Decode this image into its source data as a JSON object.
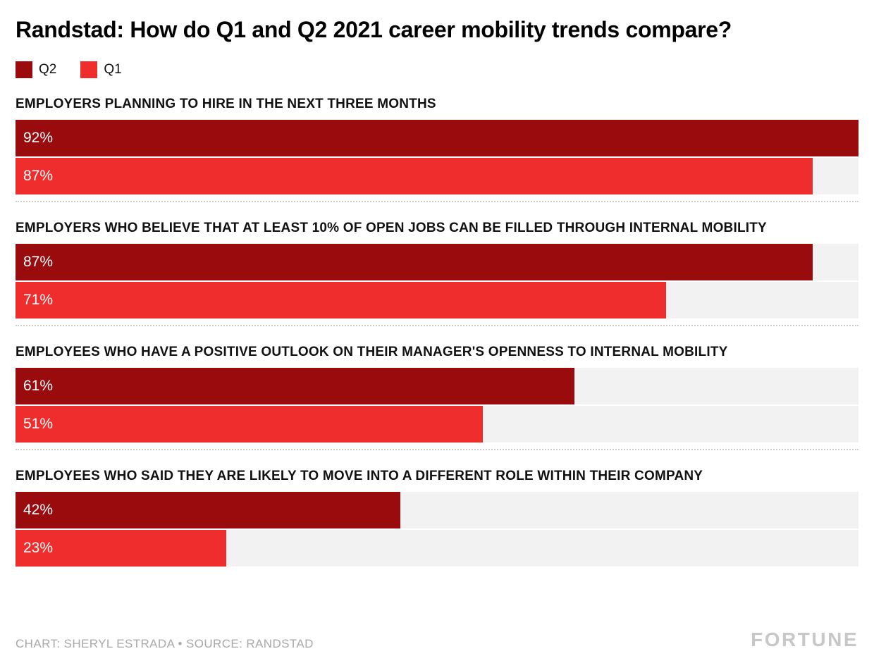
{
  "header": {
    "title": "Randstad: How do Q1 and Q2 2021 career mobility trends compare?"
  },
  "legend": {
    "items": [
      {
        "label": "Q2",
        "color": "#9A0B0D"
      },
      {
        "label": "Q1",
        "color": "#EF2D2D"
      }
    ]
  },
  "chart_data": {
    "type": "bar",
    "orientation": "horizontal",
    "title": "Randstad: How do Q1 and Q2 2021 career mobility trends compare?",
    "categories": [
      "EMPLOYERS PLANNING TO HIRE IN THE NEXT THREE MONTHS",
      "EMPLOYERS WHO BELIEVE THAT AT LEAST 10% OF OPEN JOBS CAN BE FILLED THROUGH INTERNAL MOBILITY",
      "EMPLOYEES WHO HAVE A POSITIVE OUTLOOK ON THEIR MANAGER'S OPENNESS TO INTERNAL MOBILITY",
      "EMPLOYEES WHO SAID THEY ARE LIKELY TO MOVE INTO A DIFFERENT ROLE WITHIN THEIR COMPANY"
    ],
    "series": [
      {
        "name": "Q2",
        "color": "#9A0B0D",
        "values": [
          92,
          87,
          61,
          42
        ]
      },
      {
        "name": "Q1",
        "color": "#EF2D2D",
        "values": [
          87,
          71,
          51,
          23
        ]
      }
    ],
    "value_suffix": "%",
    "scale_max": 92,
    "track_color": "#F2F2F2",
    "grid": false,
    "legend_position": "top-left"
  },
  "footer": {
    "credit": "CHART: SHERYL ESTRADA • SOURCE: RANDSTAD",
    "brand": "FORTUNE"
  }
}
